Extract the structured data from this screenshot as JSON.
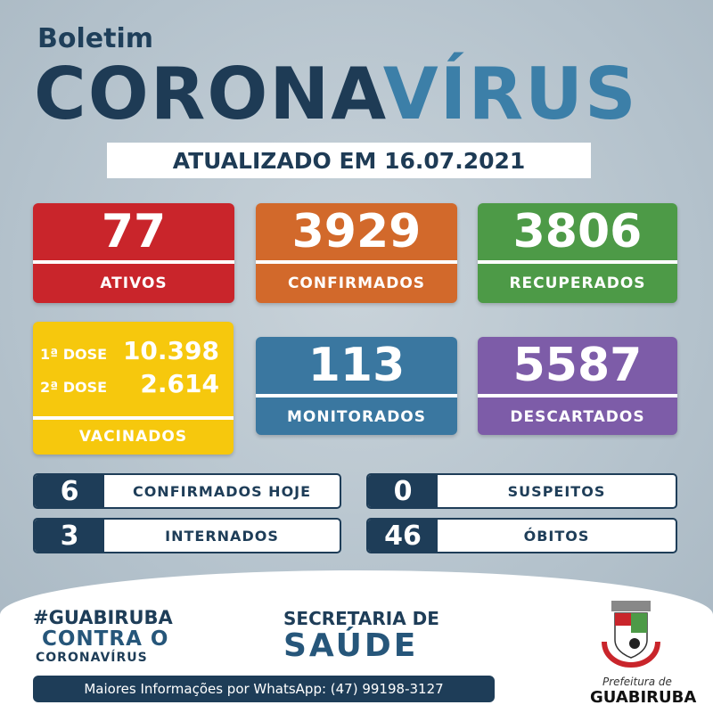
{
  "header": {
    "boletim": "Boletim",
    "title_a": "CORONA",
    "title_b": "VÍRUS",
    "updated": "ATUALIZADO EM 16.07.2021"
  },
  "cards": {
    "ativos": {
      "value": "77",
      "label": "ATIVOS",
      "color": "#c9252b"
    },
    "confirmados": {
      "value": "3929",
      "label": "CONFIRMADOS",
      "color": "#d2692b"
    },
    "recuperados": {
      "value": "3806",
      "label": "RECUPERADOS",
      "color": "#4d9a47"
    },
    "monitorados": {
      "value": "113",
      "label": "MONITORADOS",
      "color": "#3a77a0"
    },
    "descartados": {
      "value": "5587",
      "label": "DESCARTADOS",
      "color": "#7d5ca8"
    }
  },
  "vacinados": {
    "dose1_label": "1ª DOSE",
    "dose1_value": "10.398",
    "dose2_label": "2ª DOSE",
    "dose2_value": "2.614",
    "label": "VACINADOS",
    "color": "#f6c80d"
  },
  "stats": [
    {
      "value": "6",
      "label": "CONFIRMADOS HOJE"
    },
    {
      "value": "0",
      "label": "SUSPEITOS"
    },
    {
      "value": "3",
      "label": "INTERNADOS"
    },
    {
      "value": "46",
      "label": "ÓBITOS"
    }
  ],
  "footer": {
    "hashtag": "#GUABIRUBA",
    "contra": "CONTRA O",
    "corona": "CORONAVÍRUS",
    "secretaria": "SECRETARIA DE",
    "saude": "SAÚDE",
    "whatsapp": "Maiores Informações por WhatsApp: (47) 99198-3127",
    "prefeitura": "Prefeitura de",
    "city": "GUABIRUBA"
  }
}
